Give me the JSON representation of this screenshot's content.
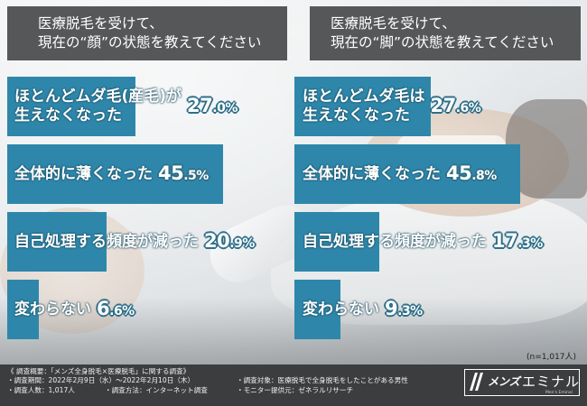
{
  "chart_data": [
    {
      "type": "bar",
      "orientation": "horizontal",
      "title": "医療脱毛を受けて、現在の“顔”の状態を教えてください",
      "title_lines": [
        "医療脱毛を受けて、",
        "現在の“顔”の状態を教えてください"
      ],
      "categories": [
        "ほとんどムダ毛(産毛)が生えなくなった",
        "全体的に薄くなった",
        "自己処理する頻度が減った",
        "変わらない"
      ],
      "label_lines": [
        [
          "ほとんどムダ毛(産毛)が",
          "生えなくなった"
        ],
        [
          "全体的に薄くなった"
        ],
        [
          "自己処理する頻度が減った"
        ],
        [
          "変わらない"
        ]
      ],
      "values": [
        27.0,
        45.5,
        20.9,
        6.6
      ],
      "value_labels": [
        [
          "27",
          ".0%"
        ],
        [
          "45",
          ".5%"
        ],
        [
          "20",
          ".9%"
        ],
        [
          "6",
          ".6%"
        ]
      ],
      "unit": "%",
      "xlim": [
        0,
        50
      ]
    },
    {
      "type": "bar",
      "orientation": "horizontal",
      "title": "医療脱毛を受けて、現在の“脚”の状態を教えてください",
      "title_lines": [
        "医療脱毛を受けて、",
        "現在の“脚”の状態を教えてください"
      ],
      "categories": [
        "ほとんどムダ毛は生えなくなった",
        "全体的に薄くなった",
        "自己処理する頻度が減った",
        "変わらない"
      ],
      "label_lines": [
        [
          "ほとんどムダ毛は",
          "生えなくなった"
        ],
        [
          "全体的に薄くなった"
        ],
        [
          "自己処理する頻度が減った"
        ],
        [
          "変わらない"
        ]
      ],
      "values": [
        27.6,
        45.8,
        17.3,
        9.3
      ],
      "value_labels": [
        [
          "27",
          ".6%"
        ],
        [
          "45",
          ".8%"
        ],
        [
          "17",
          ".3%"
        ],
        [
          "9",
          ".3%"
        ]
      ],
      "unit": "%",
      "xlim": [
        0,
        50
      ]
    }
  ],
  "colors": {
    "bar": "#2e87aa",
    "title_bg": "#555759",
    "footer_bg": "#3b3d3f"
  },
  "sample_note": "(n=1,017人)",
  "footer": {
    "line1": "《 調査概要：「メンズ全身脱毛×医療脱毛」に関する調査》",
    "line2": "・調査期間：2022年2月9日（水）～2022年2月10日（木）",
    "line3a": "・調査人数：1,017人",
    "line3b": "・調査方法：インターネット調査",
    "line4": "・調査対象：医療脱毛で全身脱毛をしたことがある男性",
    "line5": "・モニター提供元：ゼネラルリサーチ"
  },
  "logo": {
    "prefix": "メンズ",
    "name": "エミナル",
    "sub": "Men's Eminal"
  }
}
